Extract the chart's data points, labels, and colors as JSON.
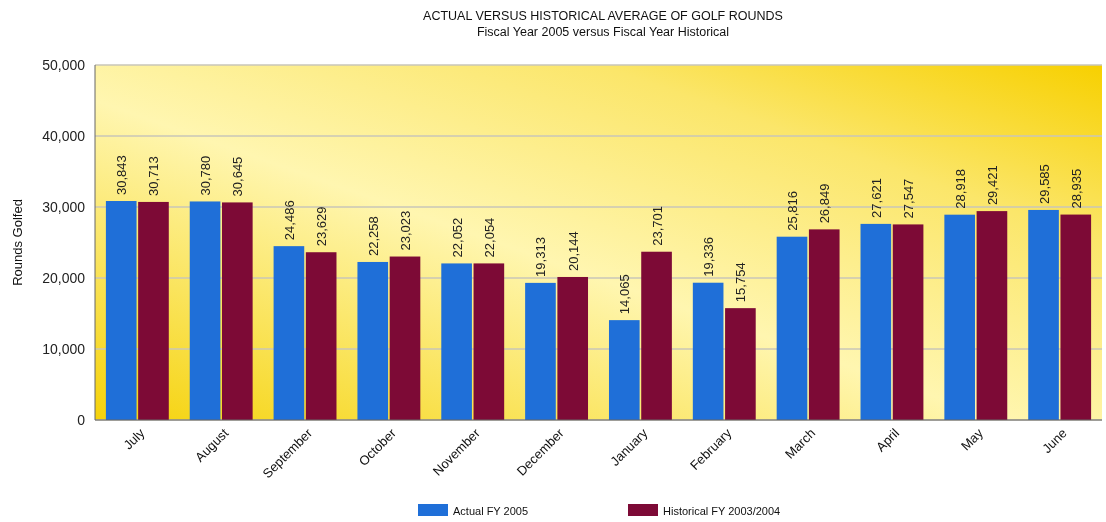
{
  "chart_data": {
    "type": "bar",
    "title": "ACTUAL VERSUS HISTORICAL AVERAGE OF GOLF ROUNDS",
    "subtitle": "Fiscal Year 2005 versus Fiscal Year Historical",
    "ylabel": "Rounds Golfed",
    "categories": [
      "July",
      "August",
      "September",
      "October",
      "November",
      "December",
      "January",
      "February",
      "March",
      "April",
      "May",
      "June"
    ],
    "series": [
      {
        "name": "Actual FY 2005",
        "color": "#1f6fd8",
        "values": [
          30843,
          30780,
          24486,
          22258,
          22052,
          19313,
          14065,
          19336,
          25816,
          27621,
          28918,
          29585
        ],
        "value_labels": [
          "30,843",
          "30,780",
          "24,486",
          "22,258",
          "22,052",
          "19,313",
          "14,065",
          "19,336",
          "25,816",
          "27,621",
          "28,918",
          "29,585"
        ]
      },
      {
        "name": "Historical FY 2003/2004",
        "color": "#7d0a36",
        "values": [
          30713,
          30645,
          23629,
          23023,
          22054,
          20144,
          23701,
          15754,
          26849,
          27547,
          29421,
          28935
        ],
        "value_labels": [
          "30,713",
          "30,645",
          "23,629",
          "23,023",
          "22,054",
          "20,144",
          "23,701",
          "15,754",
          "26,849",
          "27,547",
          "29,421",
          "28,935"
        ]
      }
    ],
    "ylim": [
      0,
      50000
    ],
    "yticks": [
      0,
      {
        "value": 10000,
        "label": "10,000"
      },
      {
        "value": 20000,
        "label": "20,000"
      },
      {
        "value": 30000,
        "label": "30,000"
      },
      {
        "value": 40000,
        "label": "40,000"
      },
      {
        "value": 50000,
        "label": "50,000"
      }
    ],
    "grid": "y",
    "legend": "bottom"
  }
}
